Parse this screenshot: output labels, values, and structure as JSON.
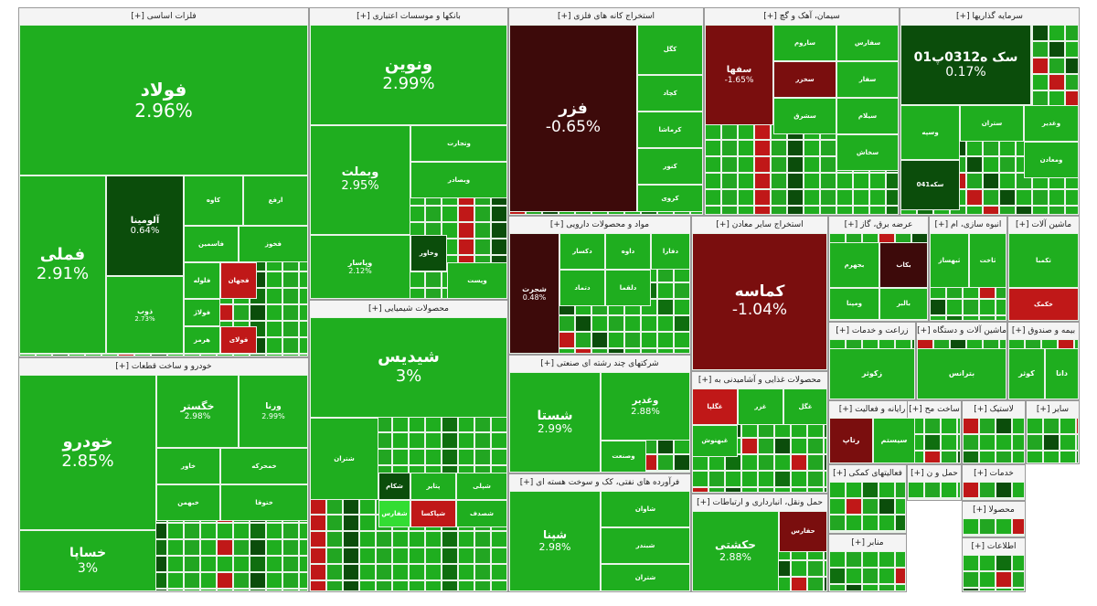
{
  "colors": {
    "up_strong": "#1fae1f",
    "up_mid": "#22a622",
    "up_dark": "#0f6e0f",
    "very_dark_green": "#0b4d0b",
    "bright_green": "#33dd33",
    "down_strong": "#7a0e0e",
    "down_dark": "#3d0a0a",
    "down_red": "#c01818"
  },
  "chart_data": {
    "type": "heatmap",
    "title": "",
    "sectors": [
      {
        "name": "فلزات اساسی [+]",
        "tiles": [
          {
            "symbol": "فولاد",
            "change": "2.96%"
          },
          {
            "symbol": "فملی",
            "change": "2.91%"
          },
          {
            "symbol": "آلومینا",
            "change": "0.64%"
          },
          {
            "symbol": "ذوب",
            "change": "2.73%"
          },
          {
            "symbol": "کاوه",
            "change": ""
          },
          {
            "symbol": "ارفع",
            "change": ""
          },
          {
            "symbol": "فاسمین",
            "change": ""
          },
          {
            "symbol": "فخوز",
            "change": ""
          },
          {
            "symbol": "فلوله",
            "change": ""
          },
          {
            "symbol": "فجهان",
            "change": ""
          },
          {
            "symbol": "فولاژ",
            "change": ""
          },
          {
            "symbol": "هرمز",
            "change": ""
          },
          {
            "symbol": "فولای",
            "change": ""
          }
        ]
      },
      {
        "name": "بانکها و موسسات اعتباری [+]",
        "tiles": [
          {
            "symbol": "ونوین",
            "change": "2.99%"
          },
          {
            "symbol": "وبملت",
            "change": "2.95%"
          },
          {
            "symbol": "وپاسار",
            "change": "2.12%"
          },
          {
            "symbol": "وتجارت",
            "change": ""
          },
          {
            "symbol": "وبصادر",
            "change": ""
          },
          {
            "symbol": "وخاور",
            "change": ""
          },
          {
            "symbol": "وپست",
            "change": ""
          }
        ]
      },
      {
        "name": "استخراج کانه های فلزی [+]",
        "tiles": [
          {
            "symbol": "فزر",
            "change": "-0.65%"
          },
          {
            "symbol": "کگل",
            "change": ""
          },
          {
            "symbol": "کچاد",
            "change": ""
          },
          {
            "symbol": "کرماشا",
            "change": ""
          },
          {
            "symbol": "کنور",
            "change": ""
          },
          {
            "symbol": "کروی",
            "change": ""
          }
        ]
      },
      {
        "name": "سیمان، آهک و گچ [+]",
        "tiles": [
          {
            "symbol": "سفها",
            "change": "-1.65%"
          },
          {
            "symbol": "ساروم",
            "change": ""
          },
          {
            "symbol": "سفارس",
            "change": ""
          },
          {
            "symbol": "سخزر",
            "change": ""
          },
          {
            "symbol": "سشرق",
            "change": ""
          },
          {
            "symbol": "سفار",
            "change": ""
          },
          {
            "symbol": "سیلام",
            "change": ""
          },
          {
            "symbol": "سخاش",
            "change": ""
          }
        ]
      },
      {
        "name": "سرمایه گذاریها [+]",
        "tiles": [
          {
            "symbol": "سک ه0312پ01",
            "change": "0.17%"
          },
          {
            "symbol": "وسپه",
            "change": ""
          },
          {
            "symbol": "ستران",
            "change": ""
          },
          {
            "symbol": "وغدیر",
            "change": ""
          },
          {
            "symbol": "ومعادن",
            "change": ""
          },
          {
            "symbol": "سکه041",
            "change": ""
          }
        ]
      },
      {
        "name": "مواد و محصولات دارویی [+]",
        "tiles": [
          {
            "symbol": "شجرت",
            "change": "0.48%"
          },
          {
            "symbol": "دکسار",
            "change": ""
          },
          {
            "symbol": "داوه",
            "change": ""
          },
          {
            "symbol": "دتماد",
            "change": ""
          },
          {
            "symbol": "دلقما",
            "change": ""
          },
          {
            "symbol": "دفارا",
            "change": ""
          }
        ]
      },
      {
        "name": "استخراج سایر معادن [+]",
        "tiles": [
          {
            "symbol": "کماسه",
            "change": "-1.04%"
          }
        ]
      },
      {
        "name": "عرضه برق، گاز [+]",
        "tiles": [
          {
            "symbol": "بجهرم",
            "change": ""
          },
          {
            "symbol": "بکاب",
            "change": ""
          },
          {
            "symbol": "ومپنا",
            "change": ""
          },
          {
            "symbol": "بالبر",
            "change": ""
          }
        ]
      },
      {
        "name": "انبوه سازی، ام [+]",
        "tiles": [
          {
            "symbol": "ثبهساز",
            "change": ""
          },
          {
            "symbol": "ثاخت",
            "change": ""
          }
        ]
      },
      {
        "name": "ماشین آلات [+]",
        "tiles": [
          {
            "symbol": "تکمبا",
            "change": ""
          },
          {
            "symbol": "خکمک",
            "change": ""
          }
        ]
      },
      {
        "name": "محصولات شیمیایی [+]",
        "tiles": [
          {
            "symbol": "شیدیس",
            "change": "3%"
          },
          {
            "symbol": "شتران",
            "change": ""
          },
          {
            "symbol": "شکام",
            "change": ""
          },
          {
            "symbol": "شفارس",
            "change": ""
          },
          {
            "symbol": "پتایر",
            "change": ""
          },
          {
            "symbol": "شپلی",
            "change": ""
          },
          {
            "symbol": "شپاکسا",
            "change": ""
          },
          {
            "symbol": "شصدف",
            "change": ""
          }
        ]
      },
      {
        "name": "شرکتهای چند رشته ای صنعتی [+]",
        "tiles": [
          {
            "symbol": "شستا",
            "change": "2.99%"
          },
          {
            "symbol": "وغدیر",
            "change": "2.88%"
          },
          {
            "symbol": "وصنعت",
            "change": ""
          }
        ]
      },
      {
        "name": "محصولات غذایی و آشامیدنی به [+]",
        "tiles": [
          {
            "symbol": "غگلپا",
            "change": ""
          },
          {
            "symbol": "غزر",
            "change": ""
          },
          {
            "symbol": "غبهنوش",
            "change": ""
          },
          {
            "symbol": "غگل",
            "change": ""
          }
        ]
      },
      {
        "name": "زراعت و خدمات [+]",
        "tiles": [
          {
            "symbol": "زکوثر",
            "change": ""
          }
        ]
      },
      {
        "name": "ماشین آلات و دستگاه [+]",
        "tiles": [
          {
            "symbol": "بترانس",
            "change": ""
          }
        ]
      },
      {
        "name": "بیمه و صندوق [+]",
        "tiles": [
          {
            "symbol": "کوثر",
            "change": ""
          },
          {
            "symbol": "دانا",
            "change": ""
          }
        ]
      },
      {
        "name": "رایانه و فعالیت [+]",
        "tiles": [
          {
            "symbol": "رتاپ",
            "change": ""
          },
          {
            "symbol": "سیستم",
            "change": ""
          }
        ]
      },
      {
        "name": "ساخت مح [+]",
        "tiles": []
      },
      {
        "name": "لاستیک [+]",
        "tiles": []
      },
      {
        "name": "سایر [+]",
        "tiles": []
      },
      {
        "name": "فعالیتهای کمکی [+]",
        "tiles": []
      },
      {
        "name": "حمل و ن [+]",
        "tiles": []
      },
      {
        "name": "خدمات [+]",
        "tiles": []
      },
      {
        "name": "محصولا [+]",
        "tiles": []
      },
      {
        "name": "اطلاعات [+]",
        "tiles": []
      },
      {
        "name": "منابر [+]",
        "tiles": []
      },
      {
        "name": "خودرو و ساخت قطعات [+]",
        "tiles": [
          {
            "symbol": "خودرو",
            "change": "2.85%"
          },
          {
            "symbol": "خساپا",
            "change": "3%"
          },
          {
            "symbol": "خگستر",
            "change": "2.98%"
          },
          {
            "symbol": "ورنا",
            "change": "2.99%"
          },
          {
            "symbol": "خاور",
            "change": ""
          },
          {
            "symbol": "خمحرکه",
            "change": ""
          },
          {
            "symbol": "خبهمن",
            "change": ""
          },
          {
            "symbol": "ختوقا",
            "change": ""
          }
        ]
      },
      {
        "name": "فرآورده های نفتی، کک و سوخت هسته ای [+]",
        "tiles": [
          {
            "symbol": "شپنا",
            "change": "2.98%"
          },
          {
            "symbol": "شاوان",
            "change": ""
          },
          {
            "symbol": "شبندر",
            "change": ""
          },
          {
            "symbol": "شتران",
            "change": ""
          }
        ]
      },
      {
        "name": "حمل ونقل، انبارداری و ارتباطات [+]",
        "tiles": [
          {
            "symbol": "حکشتی",
            "change": "2.88%"
          },
          {
            "symbol": "حفارس",
            "change": ""
          }
        ]
      }
    ]
  }
}
